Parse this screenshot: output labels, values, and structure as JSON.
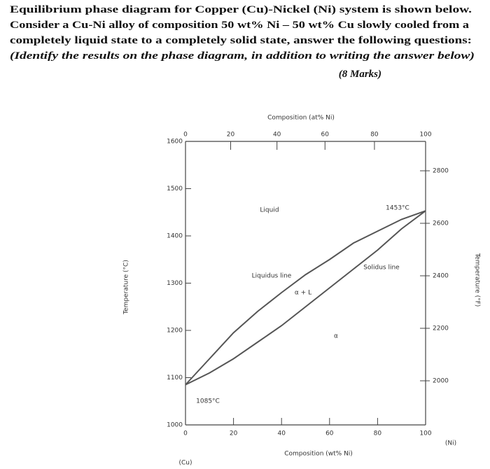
{
  "question": {
    "lines": [
      "Equilibrium phase diagram for Copper (Cu)-Nickel (Ni) system is shown below.",
      "Consider a Cu-Ni alloy of composition 50 wt% Ni – 50 wt% Cu slowly cooled from a",
      "completely liquid state to a completely solid state, answer the following questions:",
      "(Identify the results on the phase diagram, in addition to writing the answer below)"
    ],
    "marks": "(8 Marks)"
  },
  "chart_data": {
    "type": "line",
    "title": "Composition (at% Ni)",
    "x_label": "Composition (wt% Ni)",
    "y_label": "Temperature (°C)",
    "y2_label": "Temperature (°F)",
    "x": [
      0,
      10,
      20,
      30,
      40,
      50,
      60,
      70,
      80,
      90,
      100
    ],
    "series": [
      {
        "name": "Liquidus line",
        "color": "#555555",
        "values": [
          1085,
          1140,
          1195,
          1240,
          1280,
          1318,
          1350,
          1385,
          1410,
          1435,
          1453
        ]
      },
      {
        "name": "Solidus line",
        "color": "#555555",
        "values": [
          1085,
          1110,
          1140,
          1175,
          1210,
          1250,
          1290,
          1330,
          1370,
          1415,
          1453
        ]
      }
    ],
    "xlim": [
      0,
      100
    ],
    "xticks": [
      0,
      20,
      40,
      60,
      80,
      100
    ],
    "x2ticks": [
      0,
      {
        "value": 18.8,
        "label": "20"
      },
      {
        "value": 38.1,
        "label": "40"
      },
      {
        "value": 58.1,
        "label": "60"
      },
      {
        "value": 78.7,
        "label": "80"
      },
      100
    ],
    "x_end_labels": [
      "(Cu)",
      "(Ni)"
    ],
    "ylim": [
      1000,
      1600
    ],
    "yticks": [
      1000,
      1100,
      1200,
      1300,
      1400,
      1500,
      1600
    ],
    "y2lim": [
      1832,
      2912
    ],
    "y2ticks": [
      2000,
      2200,
      2400,
      2600,
      2800
    ],
    "annotations": [
      "Liquid",
      "Liquidus line",
      "Solidus line",
      "α + L",
      "α",
      "1085°C",
      "1453°C"
    ]
  }
}
